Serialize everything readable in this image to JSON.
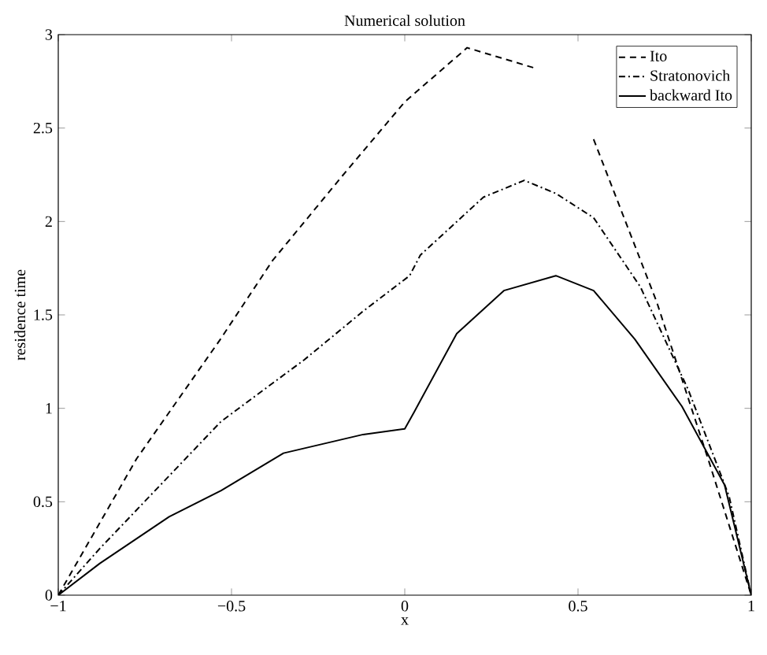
{
  "chart_data": {
    "type": "line",
    "title": "Numerical solution",
    "xlabel": "x",
    "ylabel": "residence time",
    "xlim": [
      -1,
      1
    ],
    "ylim": [
      0,
      3
    ],
    "xticks": [
      {
        "value": -1,
        "label": "−1"
      },
      {
        "value": -0.5,
        "label": "−0.5"
      },
      0,
      0.5,
      1
    ],
    "yticks": [
      0,
      0.5,
      1,
      1.5,
      2,
      2.5,
      3
    ],
    "legend": "top right",
    "grid": false,
    "series": [
      {
        "name": "Ito",
        "color": "#000000",
        "line_style": "dashed",
        "x": [
          -1,
          -0.774,
          -0.532,
          -0.382,
          -0.182,
          0,
          0.18,
          0.377,
          0.45,
          0.545,
          0.727,
          0.877,
          1
        ],
        "values": [
          0,
          0.73,
          1.37,
          1.79,
          2.24,
          2.64,
          2.93,
          2.82,
          null,
          2.44,
          1.57,
          0.72,
          0
        ]
      },
      {
        "name": "Stratonovich",
        "color": "#000000",
        "line_style": "dashdot",
        "x": [
          -1,
          -0.88,
          -0.53,
          -0.29,
          -0.12,
          0.014,
          0.045,
          0.227,
          0.345,
          0.436,
          0.545,
          0.68,
          0.818,
          0.936,
          1
        ],
        "values": [
          0,
          0.25,
          0.93,
          1.26,
          1.52,
          1.71,
          1.82,
          2.13,
          2.22,
          2.15,
          2.02,
          1.65,
          1.1,
          0.53,
          0
        ]
      },
      {
        "name": "backward Ito",
        "color": "#000000",
        "line_style": "solid",
        "x": [
          -1,
          -0.88,
          -0.68,
          -0.53,
          -0.35,
          -0.12,
          0,
          0.027,
          0.15,
          0.286,
          0.436,
          0.545,
          0.664,
          0.8,
          0.923,
          1
        ],
        "values": [
          0,
          0.17,
          0.42,
          0.56,
          0.76,
          0.86,
          0.89,
          0.98,
          1.4,
          1.63,
          1.71,
          1.63,
          1.37,
          1.01,
          0.59,
          0
        ]
      }
    ]
  }
}
